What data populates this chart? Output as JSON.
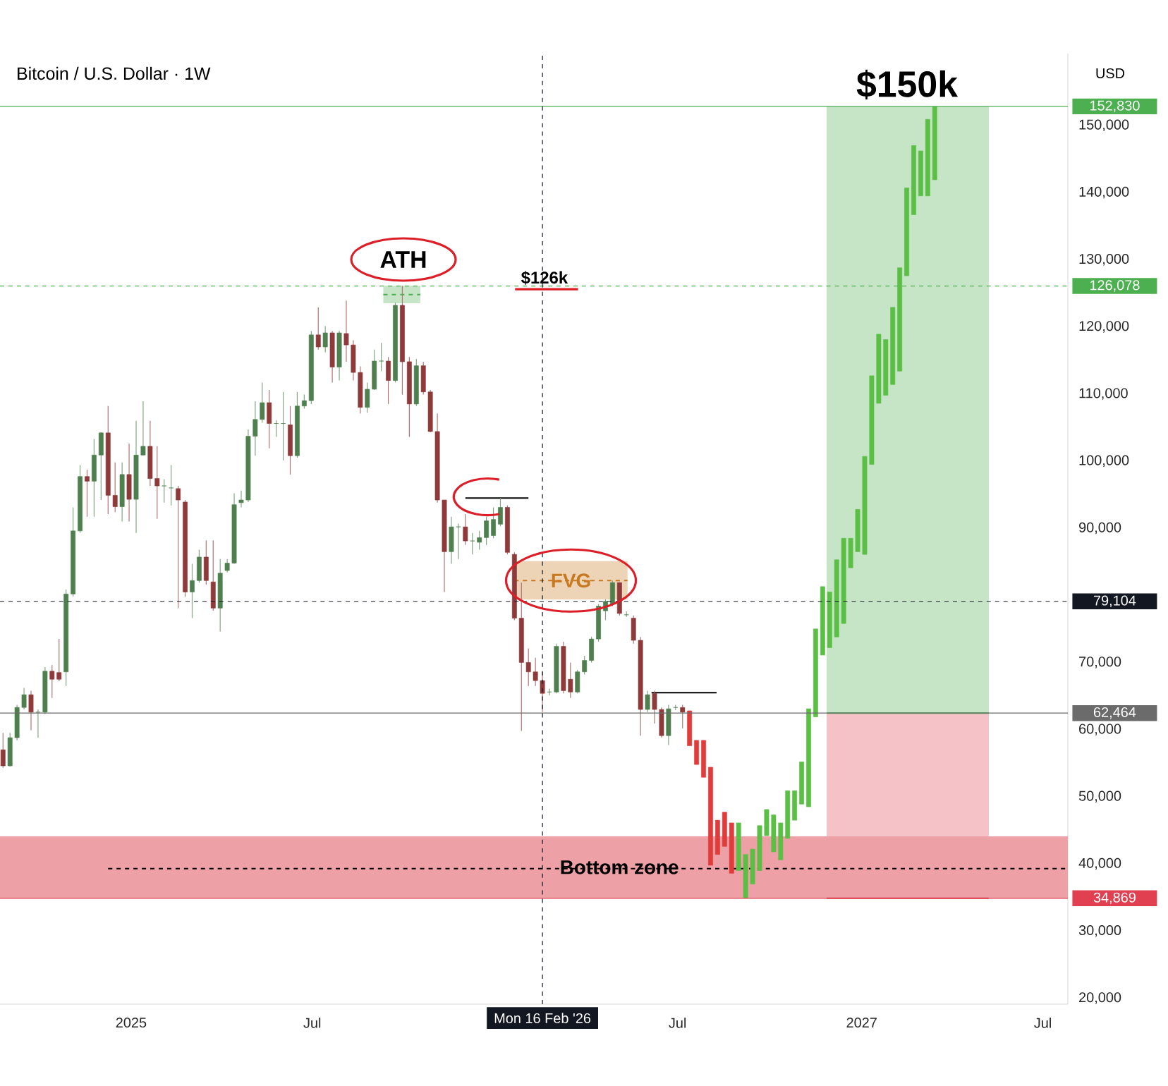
{
  "chart_data": {
    "type": "candlestick",
    "title": "Bitcoin / U.S. Dollar · 1W",
    "xlim": [
      "2024-08-23",
      "2027-07-26"
    ],
    "ylim": [
      19100,
      160700
    ],
    "xticks": [
      {
        "value": "2025-01-01",
        "label": "2025"
      },
      {
        "value": "2025-07-01",
        "label": "Jul"
      },
      {
        "value": "2026-07-01",
        "label": "Jul"
      },
      {
        "value": "2027-01-01",
        "label": "2027"
      },
      {
        "value": "2027-07-01",
        "label": "Jul"
      }
    ],
    "yticks": [
      {
        "value": 20000,
        "label": "20,000"
      },
      {
        "value": 30000,
        "label": "30,000"
      },
      {
        "value": 40000,
        "label": "40,000"
      },
      {
        "value": 50000,
        "label": "50,000"
      },
      {
        "value": 60000,
        "label": "60,000"
      },
      {
        "value": 70000,
        "label": "70,000"
      },
      {
        "value": 90000,
        "label": "90,000"
      },
      {
        "value": 100000,
        "label": "100,000"
      },
      {
        "value": 110000,
        "label": "110,000"
      },
      {
        "value": 120000,
        "label": "120,000"
      },
      {
        "value": 130000,
        "label": "130,000"
      },
      {
        "value": 140000,
        "label": "140,000"
      },
      {
        "value": 150000,
        "label": "150,000"
      }
    ],
    "annotations": [
      "ATH",
      {
        "text": "$126k",
        "x": "2026-02-18",
        "y": 127300
      },
      "$150k",
      "USD"
    ],
    "ref_lines": [
      {
        "axis": "y",
        "value": 152830,
        "label": "152,830",
        "color": "#4caf50",
        "line_style": "solid"
      },
      {
        "axis": "y",
        "value": 126078,
        "label": "126,078",
        "color": "#4caf50",
        "line_style": "dashed"
      },
      {
        "axis": "y",
        "value": 79104,
        "label": "79,104",
        "color": "#131722",
        "line_style": "dashed"
      },
      {
        "axis": "y",
        "value": 62464,
        "label": "62,464",
        "color": "#6b6b6b",
        "line_style": "solid"
      },
      {
        "axis": "y",
        "value": 34869,
        "label": "34,869",
        "color": "#e04050",
        "line_style": "solid"
      },
      {
        "axis": "x",
        "value": "2026-02-16",
        "label": "Mon 16 Feb '26",
        "color": "#131722",
        "line_style": "dashed"
      }
    ],
    "bands": [
      {
        "axis": "y",
        "from": 34869,
        "to": 44100,
        "label": "Bottom zone",
        "color": "#eda0a5"
      }
    ],
    "series": [
      {
        "type": "line",
        "x": [
          "2026-11-27",
          "2027-05-08"
        ],
        "values": [
          62464,
          62464
        ],
        "lower": [
          62464,
          62464
        ],
        "upper": [
          152830,
          152830
        ],
        "color": "#4caf50",
        "line_style": "solid"
      },
      {
        "type": "line",
        "x": [
          "2026-11-27",
          "2027-05-08"
        ],
        "values": [
          34869,
          34869
        ],
        "lower": [
          34869,
          34869
        ],
        "upper": [
          62464,
          62464
        ],
        "color": "#e04050",
        "line_style": "solid"
      },
      {
        "type": "line",
        "x": [
          "2025-09-10",
          "2025-10-17"
        ],
        "values": [
          124800,
          124800
        ],
        "lower": [
          123500,
          123500
        ],
        "upper": [
          126100,
          126100
        ],
        "color": "#4caf50",
        "line_style": "dashed"
      },
      {
        "type": "line",
        "name": "FVG",
        "x": [
          "2026-01-19",
          "2026-05-12"
        ],
        "values": [
          82200,
          82200
        ],
        "lower": [
          79400,
          79400
        ],
        "upper": [
          85100,
          85100
        ],
        "color": "#c8781e",
        "line_style": "dashed"
      },
      {
        "type": "line",
        "x": [
          "2024-12-09",
          "2027-07-26"
        ],
        "values": [
          39300,
          39300
        ],
        "color": "#000000",
        "line_style": "dashed"
      },
      {
        "type": "line",
        "x": [
          "2025-12-01",
          "2026-02-02"
        ],
        "values": [
          94500,
          94500
        ],
        "color": "#000000",
        "line_style": "solid"
      },
      {
        "type": "line",
        "x": [
          "2026-06-05",
          "2026-08-09"
        ],
        "values": [
          65500,
          65500
        ],
        "color": "#000000",
        "line_style": "solid"
      },
      {
        "x": [
          "2024-08-26",
          "2024-09-02",
          "2024-09-09",
          "2024-09-16",
          "2024-09-23",
          "2024-09-30",
          "2024-10-07",
          "2024-10-14",
          "2024-10-21",
          "2024-10-28",
          "2024-11-04",
          "2024-11-11",
          "2024-11-18",
          "2024-11-25",
          "2024-12-02",
          "2024-12-09",
          "2024-12-16",
          "2024-12-23",
          "2024-12-30",
          "2025-01-06",
          "2025-01-13",
          "2025-01-20",
          "2025-01-27",
          "2025-02-03",
          "2025-02-10",
          "2025-02-17",
          "2025-02-24",
          "2025-03-03",
          "2025-03-10",
          "2025-03-17",
          "2025-03-24",
          "2025-03-31",
          "2025-04-07",
          "2025-04-14",
          "2025-04-21",
          "2025-04-28",
          "2025-05-05",
          "2025-05-12",
          "2025-05-19",
          "2025-05-26",
          "2025-06-02",
          "2025-06-09",
          "2025-06-16",
          "2025-06-23",
          "2025-06-30",
          "2025-07-07",
          "2025-07-14",
          "2025-07-21",
          "2025-07-28",
          "2025-08-04",
          "2025-08-11",
          "2025-08-18",
          "2025-08-25",
          "2025-09-01",
          "2025-09-08",
          "2025-09-15",
          "2025-09-22",
          "2025-09-29",
          "2025-10-06",
          "2025-10-13",
          "2025-10-20",
          "2025-10-27",
          "2025-11-03",
          "2025-11-10",
          "2025-11-17",
          "2025-11-24",
          "2025-12-01",
          "2025-12-08",
          "2025-12-15",
          "2025-12-22",
          "2025-12-29",
          "2026-01-05",
          "2026-01-12",
          "2026-01-19",
          "2026-01-26",
          "2026-02-02",
          "2026-02-09",
          "2026-02-16",
          "2026-02-23",
          "2026-03-02",
          "2026-03-09",
          "2026-03-16",
          "2026-03-23",
          "2026-03-30",
          "2026-04-06",
          "2026-04-13",
          "2026-04-20",
          "2026-04-27",
          "2026-05-04",
          "2026-05-11",
          "2026-05-18",
          "2026-05-25",
          "2026-06-01",
          "2026-06-08",
          "2026-06-15",
          "2026-06-22",
          "2026-06-29",
          "2026-07-06",
          "2026-07-13",
          "2026-07-20",
          "2026-07-27",
          "2026-08-03",
          "2026-08-10",
          "2026-08-17",
          "2026-08-24",
          "2026-08-31",
          "2026-09-07",
          "2026-09-14",
          "2026-09-21",
          "2026-09-28",
          "2026-10-05",
          "2026-10-12",
          "2026-10-19",
          "2026-10-26",
          "2026-11-02",
          "2026-11-09",
          "2026-11-16",
          "2026-11-23",
          "2026-11-30",
          "2026-12-07",
          "2026-12-14",
          "2026-12-21",
          "2026-12-28",
          "2027-01-04",
          "2027-01-11",
          "2027-01-18",
          "2027-01-25",
          "2027-02-01",
          "2027-02-08",
          "2027-02-15",
          "2027-02-22",
          "2027-03-01",
          "2027-03-08",
          "2027-03-15"
        ],
        "ohlc": [
          [
            57000,
            59500,
            54300,
            54600
          ],
          [
            54600,
            59500,
            54500,
            58800
          ],
          [
            58800,
            63700,
            58400,
            63300
          ],
          [
            63300,
            66200,
            63000,
            65200
          ],
          [
            65200,
            65800,
            59900,
            62600
          ],
          [
            62600,
            63000,
            58800,
            62600
          ],
          [
            62600,
            69300,
            62300,
            68700
          ],
          [
            68700,
            69600,
            64700,
            67500
          ],
          [
            68500,
            73500,
            67200,
            67500
          ],
          [
            68600,
            80900,
            66500,
            80200
          ],
          [
            80200,
            93100,
            79800,
            89600
          ],
          [
            89600,
            99400,
            89300,
            97700
          ],
          [
            97700,
            98700,
            91700,
            97000
          ],
          [
            97000,
            103300,
            91700,
            100900
          ],
          [
            100900,
            104300,
            94200,
            104200
          ],
          [
            104200,
            108200,
            92100,
            94900
          ],
          [
            94900,
            99800,
            92400,
            93200
          ],
          [
            93200,
            99800,
            91000,
            98000
          ],
          [
            98000,
            102600,
            91000,
            94300
          ],
          [
            94300,
            106000,
            89300,
            100900
          ],
          [
            100900,
            108900,
            100800,
            102200
          ],
          [
            102200,
            106000,
            96300,
            97400
          ],
          [
            97400,
            102200,
            91400,
            96300
          ],
          [
            96300,
            97300,
            93800,
            96300
          ],
          [
            96000,
            99400,
            93400,
            96000
          ],
          [
            95900,
            96300,
            78100,
            94200
          ],
          [
            93900,
            94200,
            79800,
            80500
          ],
          [
            80500,
            84700,
            76600,
            82200
          ],
          [
            82200,
            86800,
            81900,
            85700
          ],
          [
            85700,
            88200,
            81600,
            82200
          ],
          [
            82000,
            88200,
            77700,
            78100
          ],
          [
            78100,
            85400,
            74600,
            83300
          ],
          [
            83700,
            85400,
            83400,
            84800
          ],
          [
            84800,
            95200,
            84700,
            93500
          ],
          [
            93800,
            95600,
            93100,
            94200
          ],
          [
            94200,
            104700,
            93900,
            103700
          ],
          [
            103700,
            108900,
            100800,
            106200
          ],
          [
            106200,
            111700,
            105700,
            108700
          ],
          [
            108700,
            110600,
            101900,
            105600
          ],
          [
            105600,
            106100,
            103600,
            105600
          ],
          [
            105600,
            110300,
            100100,
            105600
          ],
          [
            105400,
            108200,
            98000,
            100800
          ],
          [
            100800,
            110300,
            100500,
            108200
          ],
          [
            108200,
            109900,
            107800,
            109000
          ],
          [
            109000,
            119400,
            108500,
            118800
          ],
          [
            118800,
            122900,
            116600,
            117000
          ],
          [
            117000,
            120100,
            116200,
            119100
          ],
          [
            119100,
            119400,
            111700,
            114000
          ],
          [
            114000,
            119400,
            112000,
            119100
          ],
          [
            119000,
            123900,
            114800,
            117300
          ],
          [
            117300,
            118000,
            112000,
            113200
          ],
          [
            113200,
            114100,
            107100,
            108000
          ],
          [
            108000,
            111700,
            107200,
            110700
          ],
          [
            110700,
            116600,
            110600,
            114900
          ],
          [
            114900,
            117600,
            113400,
            114900
          ],
          [
            114900,
            115500,
            108500,
            112000
          ],
          [
            112000,
            123600,
            111700,
            123200
          ],
          [
            123200,
            126100,
            109900,
            114800
          ],
          [
            114800,
            115500,
            103600,
            108500
          ],
          [
            108500,
            115200,
            108200,
            114200
          ],
          [
            114200,
            114800,
            109900,
            110300
          ],
          [
            110300,
            110600,
            104300,
            104400
          ],
          [
            104400,
            107100,
            93800,
            94200
          ],
          [
            94200,
            94200,
            80500,
            86500
          ],
          [
            86500,
            91700,
            84700,
            90200
          ],
          [
            90200,
            90700,
            85400,
            90200
          ],
          [
            90200,
            92100,
            87500,
            88100
          ],
          [
            88100,
            89300,
            86100,
            88100
          ],
          [
            87900,
            89600,
            86800,
            88600
          ],
          [
            88600,
            91700,
            87500,
            91100
          ],
          [
            88900,
            93100,
            88500,
            91300
          ],
          [
            90600,
            94500,
            90300,
            93100
          ],
          [
            93100,
            93400,
            86100,
            86400
          ],
          [
            86100,
            86400,
            76300,
            76600
          ],
          [
            76600,
            81900,
            59800,
            70000
          ],
          [
            70000,
            72100,
            66500,
            68600
          ],
          [
            68600,
            70700,
            66500,
            67300
          ],
          [
            67300,
            68600,
            62600,
            65400
          ],
          [
            65600,
            66100,
            65100,
            65600
          ],
          [
            65600,
            72800,
            65400,
            72400
          ],
          [
            72400,
            73100,
            65400,
            65800
          ],
          [
            67500,
            70000,
            64700,
            65600
          ],
          [
            65600,
            68900,
            65400,
            68600
          ],
          [
            68600,
            71000,
            68200,
            70300
          ],
          [
            70300,
            73800,
            70000,
            73500
          ],
          [
            73500,
            78700,
            73100,
            78400
          ],
          [
            77700,
            79400,
            76300,
            79100
          ],
          [
            78700,
            82200,
            78400,
            81900
          ],
          [
            81900,
            81900,
            77000,
            77300
          ],
          [
            77100,
            77600,
            76800,
            77100
          ],
          [
            76600,
            77000,
            72800,
            73300
          ],
          [
            73300,
            73800,
            59100,
            63000
          ],
          [
            63000,
            65800,
            62600,
            65200
          ],
          [
            65400,
            65800,
            60900,
            63000
          ],
          [
            63000,
            63300,
            58800,
            59100
          ],
          [
            59100,
            63700,
            57700,
            63100
          ],
          [
            63300,
            63700,
            62900,
            63300
          ],
          [
            63300,
            63700,
            60200,
            62600
          ],
          [
            62800,
            62800,
            57600,
            57600
          ],
          [
            58400,
            58400,
            54800,
            54800
          ],
          [
            58400,
            58400,
            52900,
            52900
          ],
          [
            54400,
            54400,
            39800,
            39800
          ],
          [
            46500,
            46500,
            41400,
            41400
          ],
          [
            47700,
            47700,
            42600,
            42600
          ],
          [
            46100,
            46100,
            38600,
            38600
          ],
          [
            39000,
            46100,
            39000,
            46100
          ],
          [
            34900,
            41400,
            34900,
            41400
          ],
          [
            37000,
            42200,
            37000,
            42200
          ],
          [
            39000,
            45700,
            39000,
            45700
          ],
          [
            44200,
            48100,
            44200,
            48100
          ],
          [
            41800,
            47300,
            41800,
            47300
          ],
          [
            40600,
            46100,
            40600,
            46100
          ],
          [
            43800,
            50900,
            43800,
            50900
          ],
          [
            46500,
            50900,
            46500,
            50900
          ],
          [
            48900,
            55200,
            48900,
            55200
          ],
          [
            48500,
            63100,
            48500,
            63100
          ],
          [
            61900,
            75000,
            61900,
            75000
          ],
          [
            71100,
            81300,
            71100,
            81300
          ],
          [
            72200,
            80500,
            72200,
            80500
          ],
          [
            73800,
            85300,
            73800,
            85300
          ],
          [
            75800,
            88500,
            75800,
            88500
          ],
          [
            84100,
            88500,
            84100,
            88500
          ],
          [
            86500,
            92800,
            86500,
            92800
          ],
          [
            86100,
            100700,
            86100,
            100700
          ],
          [
            99500,
            112700,
            99500,
            112700
          ],
          [
            108600,
            118900,
            108600,
            118900
          ],
          [
            109800,
            118100,
            109800,
            118100
          ],
          [
            111400,
            122900,
            111400,
            122900
          ],
          [
            113400,
            128800,
            113400,
            128800
          ],
          [
            127600,
            140700,
            127600,
            140700
          ],
          [
            136700,
            147000,
            136700,
            147000
          ],
          [
            139500,
            146200,
            139500,
            146200
          ],
          [
            139500,
            150900,
            139500,
            150900
          ],
          [
            141900,
            152800,
            141900,
            152800
          ]
        ],
        "colors": [
          "#8e3a3a",
          "#4f7f4f",
          "#4f7f4f",
          "#4f7f4f",
          "#8e3a3a",
          "#4f7f4f",
          "#4f7f4f",
          "#8e3a3a",
          "#8e3a3a",
          "#4f7f4f",
          "#4f7f4f",
          "#4f7f4f",
          "#8e3a3a",
          "#4f7f4f",
          "#4f7f4f",
          "#8e3a3a",
          "#8e3a3a",
          "#4f7f4f",
          "#8e3a3a",
          "#4f7f4f",
          "#4f7f4f",
          "#8e3a3a",
          "#8e3a3a",
          "#4f7f4f",
          "#4f7f4f",
          "#8e3a3a",
          "#8e3a3a",
          "#4f7f4f",
          "#4f7f4f",
          "#8e3a3a",
          "#8e3a3a",
          "#4f7f4f",
          "#4f7f4f",
          "#4f7f4f",
          "#4f7f4f",
          "#4f7f4f",
          "#4f7f4f",
          "#4f7f4f",
          "#8e3a3a",
          "#4f7f4f",
          "#4f7f4f",
          "#8e3a3a",
          "#4f7f4f",
          "#4f7f4f",
          "#4f7f4f",
          "#8e3a3a",
          "#4f7f4f",
          "#8e3a3a",
          "#4f7f4f",
          "#8e3a3a",
          "#8e3a3a",
          "#8e3a3a",
          "#4f7f4f",
          "#4f7f4f",
          "#4f7f4f",
          "#8e3a3a",
          "#4f7f4f",
          "#8e3a3a",
          "#8e3a3a",
          "#4f7f4f",
          "#8e3a3a",
          "#8e3a3a",
          "#8e3a3a",
          "#8e3a3a",
          "#4f7f4f",
          "#4f7f4f",
          "#8e3a3a",
          "#4f7f4f",
          "#4f7f4f",
          "#4f7f4f",
          "#4f7f4f",
          "#4f7f4f",
          "#8e3a3a",
          "#8e3a3a",
          "#8e3a3a",
          "#8e3a3a",
          "#8e3a3a",
          "#8e3a3a",
          "#4f7f4f",
          "#4f7f4f",
          "#8e3a3a",
          "#8e3a3a",
          "#4f7f4f",
          "#4f7f4f",
          "#4f7f4f",
          "#4f7f4f",
          "#4f7f4f",
          "#4f7f4f",
          "#8e3a3a",
          "#4f7f4f",
          "#8e3a3a",
          "#8e3a3a",
          "#4f7f4f",
          "#8e3a3a",
          "#8e3a3a",
          "#4f7f4f",
          "#4f7f4f",
          "#8e3a3a",
          "#e03c3c",
          "#e03c3c",
          "#e03c3c",
          "#e03c3c",
          "#e03c3c",
          "#e03c3c",
          "#e03c3c",
          "#5cbf45",
          "#5cbf45",
          "#5cbf45",
          "#5cbf45",
          "#5cbf45",
          "#5cbf45",
          "#5cbf45",
          "#5cbf45",
          "#5cbf45",
          "#5cbf45",
          "#5cbf45",
          "#5cbf45",
          "#5cbf45",
          "#5cbf45",
          "#5cbf45",
          "#5cbf45",
          "#5cbf45",
          "#5cbf45",
          "#5cbf45",
          "#5cbf45",
          "#5cbf45",
          "#5cbf45",
          "#5cbf45",
          "#5cbf45",
          "#5cbf45",
          "#5cbf45",
          "#5cbf45",
          "#5cbf45",
          "#5cbf45"
        ]
      }
    ]
  }
}
